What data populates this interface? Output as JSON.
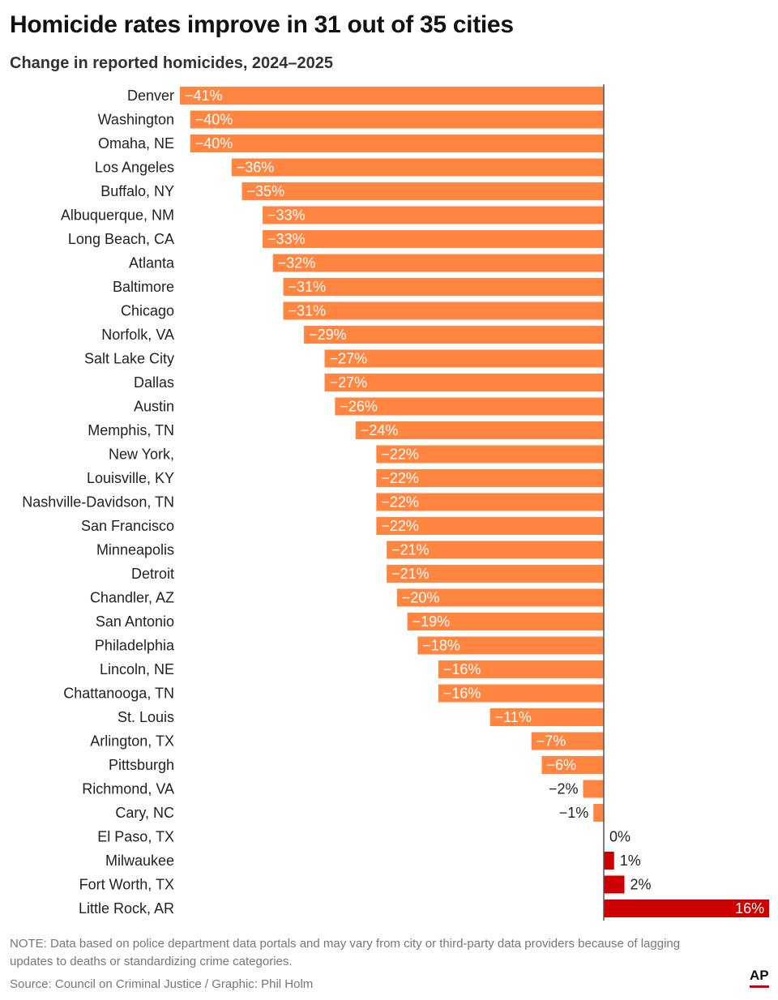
{
  "title": "Homicide rates improve in 31 out of 35 cities",
  "subtitle": "Change in reported homicides, 2024–2025",
  "note": "NOTE: Data based on police department data portals and may vary from city or third-party data providers because of lagging updates to deaths or standardizing crime categories.",
  "source": "Source: Council on Criminal Justice / Graphic: Phil Holm",
  "logo": "AP",
  "colors": {
    "decrease": "#FF8540",
    "increase": "#CC0000",
    "axis": "#555555"
  },
  "chart_data": {
    "type": "bar",
    "orientation": "horizontal",
    "title": "Homicide rates improve in 31 out of 35 cities",
    "subtitle": "Change in reported homicides, 2024–2025",
    "unit": "%",
    "xlim": [
      -41,
      16
    ],
    "grid": false,
    "categories": [
      "Denver",
      "Washington",
      "Omaha, NE",
      "Los Angeles",
      "Buffalo, NY",
      "Albuquerque, NM",
      "Long Beach, CA",
      "Atlanta",
      "Baltimore",
      "Chicago",
      "Norfolk, VA",
      "Salt Lake City",
      "Dallas",
      "Austin",
      "Memphis, TN",
      "New York,",
      "Louisville, KY",
      "Nashville-Davidson, TN",
      "San Francisco",
      "Minneapolis",
      "Detroit",
      "Chandler, AZ",
      "San Antonio",
      "Philadelphia",
      "Lincoln, NE",
      "Chattanooga, TN",
      "St. Louis",
      "Arlington, TX",
      "Pittsburgh",
      "Richmond, VA",
      "Cary, NC",
      "El Paso, TX",
      "Milwaukee",
      "Fort Worth, TX",
      "Little Rock, AR"
    ],
    "values": [
      -41,
      -40,
      -40,
      -36,
      -35,
      -33,
      -33,
      -32,
      -31,
      -31,
      -29,
      -27,
      -27,
      -26,
      -24,
      -22,
      -22,
      -22,
      -22,
      -21,
      -21,
      -20,
      -19,
      -18,
      -16,
      -16,
      -11,
      -7,
      -6,
      -2,
      -1,
      0,
      1,
      2,
      16
    ],
    "labels": [
      "−41%",
      "−40%",
      "−40%",
      "−36%",
      "−35%",
      "−33%",
      "−33%",
      "−32%",
      "−31%",
      "−31%",
      "−29%",
      "−27%",
      "−27%",
      "−26%",
      "−24%",
      "−22%",
      "−22%",
      "−22%",
      "−22%",
      "−21%",
      "−21%",
      "−20%",
      "−19%",
      "−18%",
      "−16%",
      "−16%",
      "−11%",
      "−7%",
      "−6%",
      "−2%",
      "−1%",
      "0%",
      "1%",
      "2%",
      "16%"
    ]
  }
}
